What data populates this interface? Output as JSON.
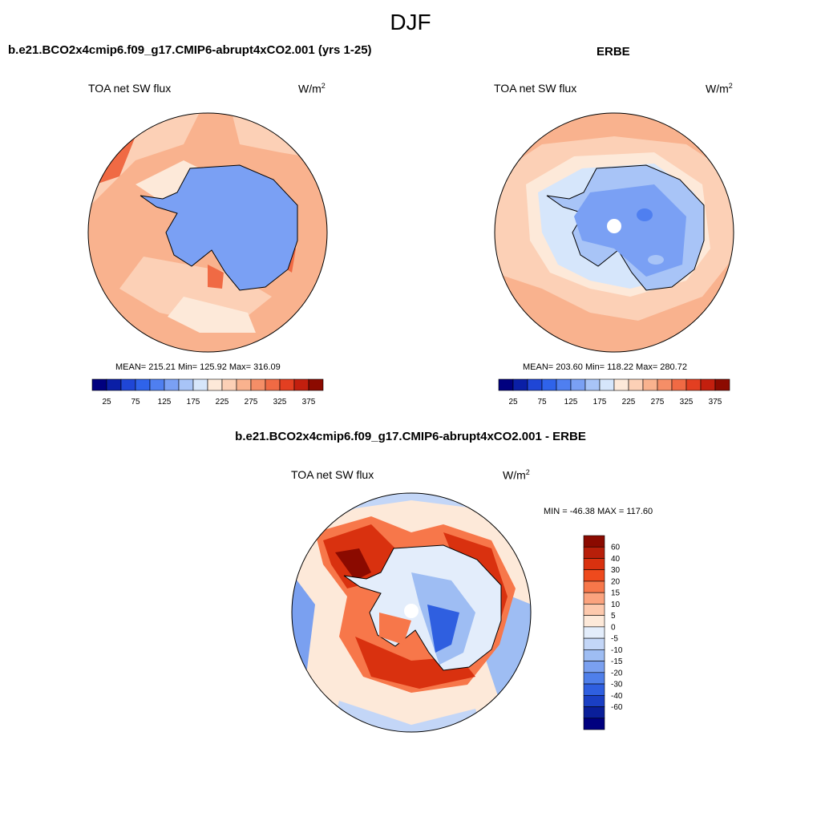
{
  "figure": {
    "season": "DJF"
  },
  "panel1": {
    "title": "b.e21.BCO2x4cmip6.f09_g17.CMIP6-abrupt4xCO2.001 (yrs 1-25)",
    "variable": "TOA net SW flux",
    "units": "W/m",
    "units_sup": "2",
    "stats": "MEAN= 215.21  Min= 125.92  Max= 316.09"
  },
  "panel2": {
    "title": "ERBE",
    "variable": "TOA net SW flux",
    "units": "W/m",
    "units_sup": "2",
    "stats": "MEAN= 203.60  Min= 118.22  Max= 280.72"
  },
  "panel3": {
    "title": "b.e21.BCO2x4cmip6.f09_g17.CMIP6-abrupt4xCO2.001 - ERBE",
    "variable": "TOA net SW flux",
    "units": "W/m",
    "units_sup": "2",
    "stats": "MIN = -46.38 MAX = 117.60"
  },
  "colorbar_abs": {
    "ticks": [
      "25",
      "75",
      "125",
      "175",
      "225",
      "275",
      "325",
      "375"
    ],
    "colors": [
      "#00007f",
      "#0a1fa6",
      "#1f46d6",
      "#2f63ea",
      "#4f7ff0",
      "#7aa0f4",
      "#a8c4f7",
      "#d6e6fb",
      "#fde9d9",
      "#fcd0b6",
      "#f9b28e",
      "#f58e67",
      "#f06a44",
      "#e33f21",
      "#c31f0e",
      "#8c0a00"
    ]
  },
  "colorbar_diff": {
    "ticks": [
      "60",
      "40",
      "30",
      "20",
      "15",
      "10",
      "5",
      "0",
      "-5",
      "-10",
      "-15",
      "-20",
      "-30",
      "-40",
      "-60"
    ],
    "colors": [
      "#8b0a00",
      "#b81f0a",
      "#d9310f",
      "#ee4a1d",
      "#f7774a",
      "#fba37e",
      "#fdc9ad",
      "#fde9d9",
      "#e3edfb",
      "#c3d6f7",
      "#9ebdf3",
      "#7aa0f0",
      "#4f7fea",
      "#2f5fe0",
      "#1a3fc4",
      "#0a1f9a",
      "#00007f"
    ]
  }
}
